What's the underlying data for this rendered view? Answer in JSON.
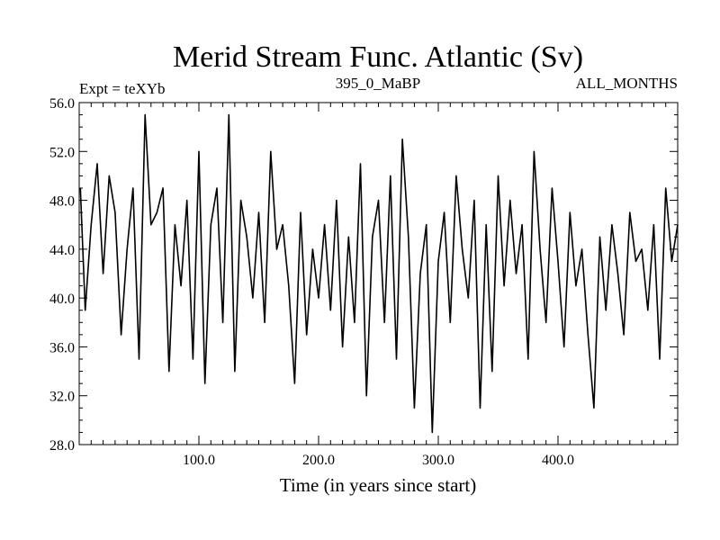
{
  "chart_data": {
    "type": "line",
    "title": "Merid Stream Func. Atlantic (Sv)",
    "subtitle_left": "Expt = teXYb",
    "subtitle_center": "395_0_MaBP",
    "subtitle_right": "ALL_MONTHS",
    "xlabel": "Time (in years since start)",
    "ylabel": "",
    "xlim": [
      0,
      500
    ],
    "ylim": [
      28,
      56
    ],
    "x_ticks": [
      100,
      200,
      300,
      400
    ],
    "x_tick_labels": [
      "100.0",
      "200.0",
      "300.0",
      "400.0"
    ],
    "y_ticks": [
      28,
      32,
      36,
      40,
      44,
      48,
      52,
      56
    ],
    "y_tick_labels": [
      "28.0",
      "32.0",
      "36.0",
      "40.0",
      "44.0",
      "48.0",
      "52.0",
      "56.0"
    ],
    "grid": false,
    "series": [
      {
        "name": "",
        "color": "#000000",
        "x": [
          1,
          5,
          10,
          15,
          20,
          25,
          30,
          35,
          40,
          45,
          50,
          55,
          60,
          65,
          70,
          75,
          80,
          85,
          90,
          95,
          100,
          105,
          110,
          115,
          120,
          125,
          130,
          135,
          140,
          145,
          150,
          155,
          160,
          165,
          170,
          175,
          180,
          185,
          190,
          195,
          200,
          205,
          210,
          215,
          220,
          225,
          230,
          235,
          240,
          245,
          250,
          255,
          260,
          265,
          270,
          275,
          280,
          285,
          290,
          295,
          300,
          305,
          310,
          315,
          320,
          325,
          330,
          335,
          340,
          345,
          350,
          355,
          360,
          365,
          370,
          375,
          380,
          385,
          390,
          395,
          400,
          405,
          410,
          415,
          420,
          425,
          430,
          435,
          440,
          445,
          450,
          455,
          460,
          465,
          470,
          475,
          480,
          485,
          490,
          495,
          500
        ],
        "y": [
          49,
          39,
          46,
          51,
          42,
          50,
          47,
          37,
          44,
          49,
          35,
          55,
          46,
          47,
          49,
          34,
          46,
          41,
          48,
          35,
          52,
          33,
          46,
          49,
          38,
          55,
          34,
          48,
          45,
          40,
          47,
          38,
          52,
          44,
          46,
          41,
          33,
          47,
          37,
          44,
          40,
          46,
          39,
          48,
          36,
          45,
          38,
          51,
          32,
          45,
          48,
          38,
          50,
          35,
          53,
          45,
          31,
          42,
          46,
          29,
          43,
          47,
          38,
          50,
          44,
          40,
          48,
          31,
          46,
          34,
          50,
          41,
          48,
          42,
          46,
          35,
          52,
          44,
          38,
          49,
          43,
          36,
          47,
          41,
          44,
          37,
          31,
          45,
          39,
          46,
          42,
          37,
          47,
          43,
          44,
          39,
          46,
          35,
          49,
          43,
          46
        ]
      }
    ]
  }
}
